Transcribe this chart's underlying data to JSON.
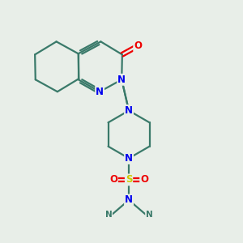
{
  "bg_color": "#e8eee8",
  "bond_color": "#3a7a6a",
  "atom_colors": {
    "N": "#0000ee",
    "O": "#ee0000",
    "S": "#cccc00",
    "C": "#3a7a6a"
  },
  "line_width": 1.6,
  "font_size_atom": 8.5,
  "font_size_methyl": 7.5
}
